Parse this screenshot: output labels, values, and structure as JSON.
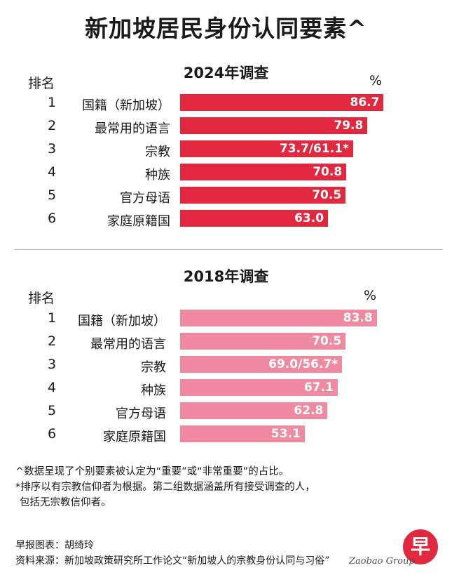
{
  "title": "新加坡居民身份认同要素^",
  "colors": {
    "bar_2024": "#e2283f",
    "bar_2018": "#ef8aa0",
    "logo": "#e2283f"
  },
  "chart_data": [
    {
      "type": "bar",
      "title": "2024年调查",
      "rank_header": "排名",
      "unit_label": "%",
      "ranks": [
        "1",
        "2",
        "3",
        "4",
        "5",
        "6"
      ],
      "categories": [
        "国籍（新加坡）",
        "最常用的语言",
        "宗教",
        "种族",
        "官方母语",
        "家庭原籍国"
      ],
      "values": [
        86.7,
        79.8,
        73.7,
        70.8,
        70.5,
        63.0
      ],
      "value_labels": [
        "86.7",
        "79.8",
        "73.7/61.1*",
        "70.8",
        "70.5",
        "63.0"
      ],
      "xlim": [
        0,
        100
      ]
    },
    {
      "type": "bar",
      "title": "2018年调查",
      "rank_header": "排名",
      "unit_label": "%",
      "ranks": [
        "1",
        "2",
        "3",
        "4",
        "5",
        "6"
      ],
      "categories": [
        "国籍（新加坡）",
        "最常用的语言",
        "宗教",
        "种族",
        "官方母语",
        "家庭原籍国"
      ],
      "values": [
        83.8,
        70.5,
        69.0,
        67.1,
        62.8,
        53.1
      ],
      "value_labels": [
        "83.8",
        "70.5",
        "69.0/56.7*",
        "67.1",
        "62.8",
        "53.1"
      ],
      "xlim": [
        0,
        100
      ]
    }
  ],
  "notes": [
    "^数据呈现了个别要素被认定为“重要”或“非常重要”的占比。",
    "*排序以有宗教信仰者为根据。第二组数据涵盖所有接受调查的人，",
    "  包括无宗教信仰者。"
  ],
  "credits": {
    "graphic": "早报图表：胡绮玲",
    "source": "资料来源：新加坡政策研究所工作论文“新加坡人的宗教身份认同与习俗”"
  },
  "logo": {
    "glyph": "早",
    "text": "Zaobao Group"
  }
}
